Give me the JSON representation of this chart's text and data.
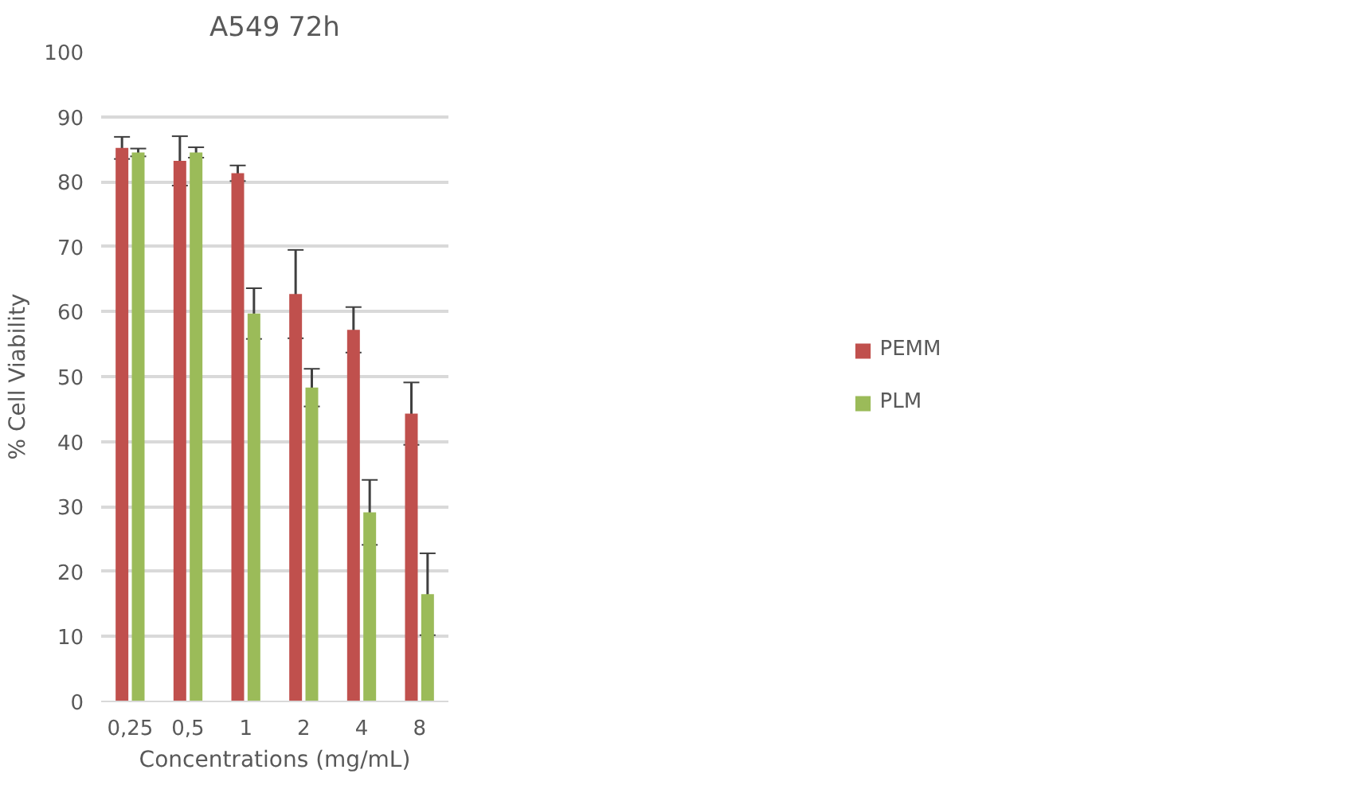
{
  "chart_data": {
    "type": "bar",
    "title": "A549 72h",
    "xlabel": "Concentrations (mg/mL)",
    "ylabel": "% Cell Viability",
    "categories": [
      "0,25",
      "0,5",
      "1",
      "2",
      "4",
      "8"
    ],
    "series": [
      {
        "name": "PEMM",
        "color": "#c0504d",
        "values": [
          85.2,
          83.2,
          81.3,
          62.7,
          57.2,
          44.3
        ],
        "errors": [
          1.7,
          3.8,
          1.2,
          6.8,
          3.5,
          4.8
        ]
      },
      {
        "name": "PLM",
        "color": "#9bbb59",
        "values": [
          84.5,
          84.5,
          59.7,
          48.3,
          29.1,
          16.5
        ],
        "errors": [
          0.6,
          0.8,
          3.9,
          2.9,
          5.0,
          6.3
        ]
      }
    ],
    "ylim": [
      0,
      100
    ],
    "yticks": [
      0,
      10,
      20,
      30,
      40,
      50,
      60,
      70,
      80,
      90,
      100
    ],
    "grid": "y",
    "legend": "right"
  }
}
